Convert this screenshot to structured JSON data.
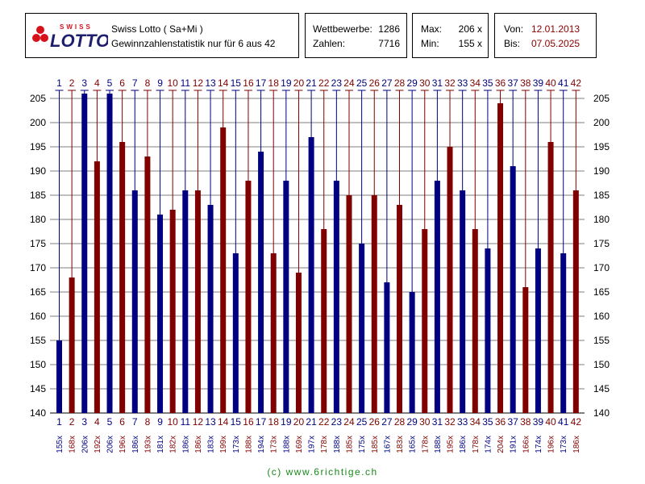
{
  "header": {
    "logo": {
      "top_text": "SWISS",
      "main_text": "LOTTO"
    },
    "title": "Swiss Lotto ( Sa+Mi )",
    "subtitle": "Gewinnzahlenstatistik nur für 6 aus 42",
    "stats": {
      "wettbewerbe_label": "Wettbewerbe:",
      "wettbewerbe_value": "1286",
      "zahlen_label": "Zahlen:",
      "zahlen_value": "7716"
    },
    "maxmin": {
      "max_label": "Max:",
      "max_value": "206 x",
      "min_label": "Min:",
      "min_value": "155 x"
    },
    "dates": {
      "von_label": "Von:",
      "von_value": "12.01.2013",
      "bis_label": "Bis:",
      "bis_value": "07.05.2025"
    }
  },
  "colors": {
    "blue": "#000080",
    "red": "#800000",
    "grid": "#000000",
    "footer": "#1a8a1a",
    "logo_red": "#d8101a",
    "logo_text": "#1e1e6e"
  },
  "chart_data": {
    "type": "bar",
    "categories": [
      "1",
      "2",
      "3",
      "4",
      "5",
      "6",
      "7",
      "8",
      "9",
      "10",
      "11",
      "12",
      "13",
      "14",
      "15",
      "16",
      "17",
      "18",
      "19",
      "20",
      "21",
      "22",
      "23",
      "24",
      "25",
      "26",
      "27",
      "28",
      "29",
      "30",
      "31",
      "32",
      "33",
      "34",
      "35",
      "36",
      "37",
      "38",
      "39",
      "40",
      "41",
      "42"
    ],
    "values": [
      155,
      168,
      206,
      192,
      206,
      196,
      186,
      193,
      181,
      182,
      186,
      186,
      183,
      199,
      173,
      188,
      194,
      173,
      188,
      169,
      197,
      178,
      188,
      185,
      175,
      185,
      167,
      183,
      165,
      178,
      188,
      195,
      186,
      178,
      174,
      204,
      191,
      166,
      174,
      196,
      173,
      186
    ],
    "value_labels": [
      "155x",
      "168x",
      "206x",
      "192x",
      "206x",
      "196x",
      "186x",
      "193x",
      "181x",
      "182x",
      "186x",
      "186x",
      "183x",
      "199x",
      "173x",
      "188x",
      "194x",
      "173x",
      "188x",
      "169x",
      "197x",
      "178x",
      "188x",
      "185x",
      "175x",
      "185x",
      "167x",
      "183x",
      "165x",
      "178x",
      "188x",
      "195x",
      "186x",
      "178x",
      "174x",
      "204x",
      "191x",
      "166x",
      "174x",
      "196x",
      "173x",
      "186x"
    ],
    "ylim": [
      140,
      205
    ],
    "yticks": [
      140,
      145,
      150,
      155,
      160,
      165,
      170,
      175,
      180,
      185,
      190,
      195,
      200,
      205
    ],
    "grid": true,
    "bar_colors": "alternating blue (odd) / red (even)"
  },
  "footer": "(c) www.6richtige.ch"
}
